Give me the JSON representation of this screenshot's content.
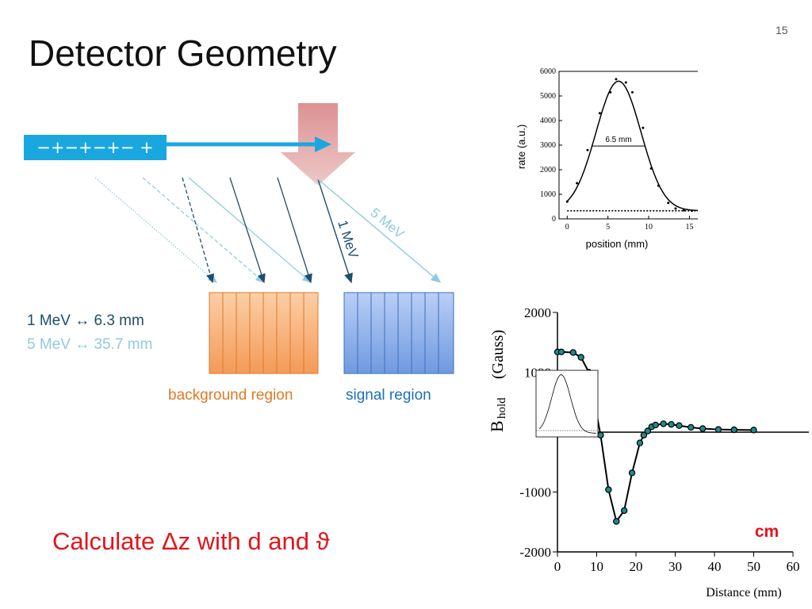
{
  "slide": {
    "title": "Detector Geometry",
    "page_number": "15",
    "calculation_note": "Calculate Δz with d and ϑ"
  },
  "diagram": {
    "beam_charges": "−+−+−+− +",
    "track_labels": {
      "one_mev": "1 MeV",
      "five_mev": "5 MeV"
    },
    "legend": {
      "one_mev": "1 MeV ↔ 6.3 mm",
      "five_mev": "5 MeV ↔ 35.7 mm"
    },
    "regions": {
      "background": "background region",
      "signal": "signal region"
    },
    "colors": {
      "beam": "#1aa7e0",
      "one_mev_track": "#1e4e6b",
      "five_mev_track": "#8fcbe0",
      "background_region": "#f6b27c",
      "signal_region": "#8fb3ea",
      "laser": "#d98585"
    }
  },
  "chart_data": [
    {
      "type": "scatter",
      "title": "",
      "xlabel": "position  (mm)",
      "ylabel": "rate  (a.u.)",
      "xlim": [
        -1,
        17
      ],
      "ylim": [
        0,
        6000
      ],
      "x_ticks": [
        "0",
        "5",
        "10",
        "15"
      ],
      "y_ticks": [
        "0",
        "1000",
        "2000",
        "3000",
        "4000",
        "5000",
        "6000"
      ],
      "annotation": "6.5  mm",
      "points": [
        {
          "x": 0.0,
          "y": 700
        },
        {
          "x": 1.2,
          "y": 1450
        },
        {
          "x": 2.5,
          "y": 2800
        },
        {
          "x": 4.0,
          "y": 4300
        },
        {
          "x": 5.3,
          "y": 5150
        },
        {
          "x": 6.0,
          "y": 5680
        },
        {
          "x": 7.2,
          "y": 5550
        },
        {
          "x": 8.0,
          "y": 5150
        },
        {
          "x": 9.3,
          "y": 3700
        },
        {
          "x": 10.3,
          "y": 2050
        },
        {
          "x": 11.2,
          "y": 1350
        },
        {
          "x": 12.4,
          "y": 650
        },
        {
          "x": 13.3,
          "y": 420
        },
        {
          "x": 14.3,
          "y": 350
        },
        {
          "x": 15.3,
          "y": 330
        },
        {
          "x": 16.2,
          "y": 330
        }
      ],
      "fit": {
        "peak": 5600,
        "center": 6.3,
        "fwhm": 6.5,
        "baseline": 330
      },
      "baseline_dotted": 330
    },
    {
      "type": "line",
      "title": "",
      "xlabel": "Distance (mm)",
      "ylabel": "B_hold  (Gauss)",
      "ylabel_main": "B",
      "ylabel_sub": "hold",
      "ylabel_unit": "(Gauss)",
      "xlim": [
        0,
        60
      ],
      "ylim": [
        -2000,
        2000
      ],
      "x_ticks": [
        "0",
        "10",
        "20",
        "30",
        "40",
        "50",
        "60"
      ],
      "y_ticks": [
        "2000",
        "1000",
        "0",
        "-1000",
        "-2000"
      ],
      "annotation": "cm",
      "points": [
        {
          "x": 0,
          "y": 1340
        },
        {
          "x": 1,
          "y": 1340
        },
        {
          "x": 4,
          "y": 1330
        },
        {
          "x": 6,
          "y": 1250
        },
        {
          "x": 8,
          "y": 1000
        },
        {
          "x": 11,
          "y": -50
        },
        {
          "x": 13,
          "y": -960
        },
        {
          "x": 15,
          "y": -1490
        },
        {
          "x": 17,
          "y": -1310
        },
        {
          "x": 19,
          "y": -680
        },
        {
          "x": 21,
          "y": -180
        },
        {
          "x": 22,
          "y": -50
        },
        {
          "x": 23,
          "y": 20
        },
        {
          "x": 24,
          "y": 90
        },
        {
          "x": 25,
          "y": 120
        },
        {
          "x": 27,
          "y": 140
        },
        {
          "x": 29,
          "y": 130
        },
        {
          "x": 31,
          "y": 110
        },
        {
          "x": 34,
          "y": 80
        },
        {
          "x": 37,
          "y": 60
        },
        {
          "x": 41,
          "y": 45
        },
        {
          "x": 45,
          "y": 40
        },
        {
          "x": 50,
          "y": 35
        }
      ]
    }
  ]
}
